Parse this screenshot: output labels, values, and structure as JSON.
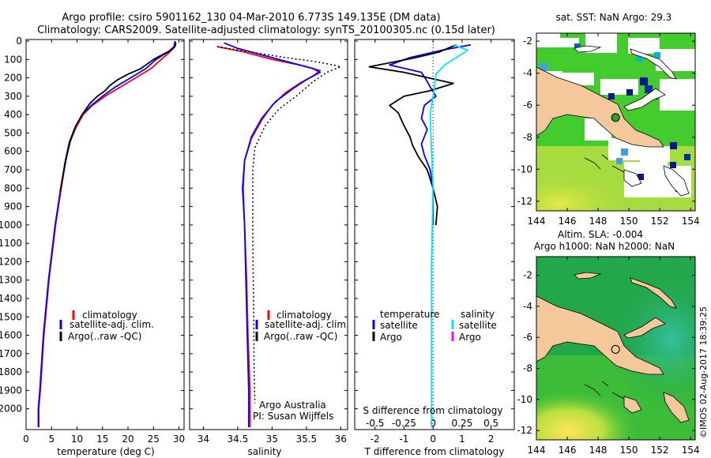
{
  "header": {
    "line1": "Argo profile: csiro 5901162_130 04-Mar-2010 6.773S 149.135E (DM data)",
    "line2": "Climatology: CARS2009. Satellite-adjusted climatology: synTS_20100305.nc (0.15d later)"
  },
  "colors": {
    "clim": "#ff0000",
    "sat": "#0000ff",
    "argo": "#000000",
    "sat_s": "#00e5ff",
    "argo_s": "#ff00ff",
    "land": "#f5c89c"
  },
  "chart_data": [
    {
      "type": "line",
      "name": "temperature",
      "xlabel": "temperature (deg C)",
      "ylabel": "",
      "xlim": [
        0,
        31
      ],
      "ylim": [
        2100,
        0
      ],
      "xticks": [
        "0",
        "5",
        "10",
        "15",
        "20",
        "25",
        "30"
      ],
      "yticks": [
        "0",
        "100",
        "200",
        "300",
        "400",
        "500",
        "600",
        "700",
        "800",
        "900",
        "1000",
        "1100",
        "1200",
        "1300",
        "1400",
        "1500",
        "1600",
        "1700",
        "1800",
        "1900",
        "2000"
      ],
      "legend": [
        "climatology",
        "satellite-adj. clim.",
        "Argo(..raw -QC)"
      ],
      "series": [
        {
          "name": "climatology",
          "color": "clim",
          "points": [
            [
              29.2,
              0
            ],
            [
              29.0,
              30
            ],
            [
              28.2,
              60
            ],
            [
              26.5,
              100
            ],
            [
              24.5,
              150
            ],
            [
              21.5,
              200
            ],
            [
              18.5,
              250
            ],
            [
              15.5,
              300
            ],
            [
              13,
              350
            ],
            [
              11.2,
              400
            ],
            [
              9.8,
              470
            ],
            [
              8.6,
              550
            ],
            [
              7.8,
              650
            ],
            [
              6.9,
              800
            ],
            [
              5.8,
              1000
            ],
            [
              4.5,
              1300
            ],
            [
              3.5,
              1600
            ],
            [
              2.8,
              1900
            ],
            [
              2.5,
              2000
            ],
            [
              2.5,
              2100
            ]
          ]
        },
        {
          "name": "satellite-adj. clim.",
          "color": "sat",
          "points": [
            [
              29.3,
              0
            ],
            [
              29.1,
              30
            ],
            [
              27.8,
              60
            ],
            [
              25.5,
              100
            ],
            [
              23.5,
              150
            ],
            [
              20.5,
              200
            ],
            [
              17.5,
              250
            ],
            [
              15,
              300
            ],
            [
              12.8,
              350
            ],
            [
              11,
              400
            ],
            [
              9.6,
              470
            ],
            [
              8.5,
              550
            ],
            [
              7.7,
              650
            ],
            [
              6.8,
              800
            ],
            [
              5.7,
              1000
            ],
            [
              4.4,
              1300
            ],
            [
              3.4,
              1600
            ],
            [
              2.7,
              1900
            ],
            [
              2.4,
              2000
            ],
            [
              2.4,
              2100
            ]
          ]
        },
        {
          "name": "Argo(..raw -QC)",
          "color": "argo",
          "points": [
            [
              29.4,
              10
            ],
            [
              29.2,
              30
            ],
            [
              28.5,
              50
            ],
            [
              27.0,
              70
            ],
            [
              25.0,
              100
            ],
            [
              23.5,
              130
            ],
            [
              22.5,
              150
            ],
            [
              20,
              180
            ],
            [
              18,
              210
            ],
            [
              16.5,
              240
            ],
            [
              15.5,
              270
            ],
            [
              14,
              300
            ],
            [
              12.5,
              340
            ],
            [
              11,
              400
            ],
            [
              9.8,
              460
            ],
            [
              8.8,
              530
            ],
            [
              8,
              620
            ],
            [
              7.3,
              720
            ],
            [
              6.7,
              820
            ]
          ]
        }
      ]
    },
    {
      "type": "line",
      "name": "salinity",
      "xlabel": "salinity",
      "ylabel": "",
      "xlim": [
        33.8,
        36.1
      ],
      "ylim": [
        2100,
        0
      ],
      "xticks": [
        "34",
        "34.5",
        "35",
        "35.5",
        "36"
      ],
      "legend": [
        "climatology",
        "satellite-adj. clim.",
        "Argo(..raw -QC)"
      ],
      "annotations": [
        "Argo Australia",
        "PI: Susan Wijffels"
      ],
      "series": [
        {
          "name": "climatology",
          "color": "clim",
          "points": [
            [
              34.2,
              30
            ],
            [
              34.6,
              60
            ],
            [
              35.0,
              100
            ],
            [
              35.4,
              130
            ],
            [
              35.7,
              160
            ],
            [
              35.6,
              190
            ],
            [
              35.4,
              230
            ],
            [
              35.2,
              280
            ],
            [
              35.0,
              350
            ],
            [
              34.85,
              430
            ],
            [
              34.7,
              530
            ],
            [
              34.6,
              650
            ],
            [
              34.58,
              800
            ],
            [
              34.6,
              1000
            ],
            [
              34.63,
              1300
            ],
            [
              34.65,
              1600
            ],
            [
              34.68,
              1900
            ],
            [
              34.68,
              2000
            ],
            [
              34.68,
              2100
            ]
          ]
        },
        {
          "name": "satellite-adj. clim.",
          "color": "sat",
          "points": [
            [
              34.3,
              10
            ],
            [
              34.5,
              40
            ],
            [
              34.9,
              80
            ],
            [
              35.3,
              120
            ],
            [
              35.6,
              150
            ],
            [
              35.7,
              170
            ],
            [
              35.5,
              210
            ],
            [
              35.3,
              260
            ],
            [
              35.05,
              330
            ],
            [
              34.85,
              420
            ],
            [
              34.7,
              520
            ],
            [
              34.6,
              650
            ],
            [
              34.57,
              800
            ],
            [
              34.6,
              1000
            ],
            [
              34.62,
              1300
            ],
            [
              34.64,
              1600
            ],
            [
              34.66,
              1900
            ],
            [
              34.66,
              2000
            ],
            [
              34.66,
              2100
            ]
          ]
        },
        {
          "name": "Argo(..raw -QC)",
          "color": "argo",
          "style": "dotted",
          "points": [
            [
              34.2,
              30
            ],
            [
              34.7,
              60
            ],
            [
              35.2,
              90
            ],
            [
              35.6,
              110
            ],
            [
              35.9,
              130
            ],
            [
              36.0,
              140
            ],
            [
              35.8,
              170
            ],
            [
              35.6,
              220
            ],
            [
              35.35,
              300
            ],
            [
              35.1,
              370
            ],
            [
              34.9,
              460
            ],
            [
              34.75,
              580
            ],
            [
              34.72,
              700
            ],
            [
              34.72,
              900
            ],
            [
              34.72,
              1100
            ],
            [
              34.73,
              1400
            ],
            [
              34.74,
              1800
            ],
            [
              34.75,
              1970
            ]
          ]
        }
      ]
    },
    {
      "type": "line",
      "name": "differences",
      "xlabel": "T difference from climatology",
      "xlabel_top": "S difference from climatology",
      "xlim": [
        -2.7,
        2.8
      ],
      "ylim": [
        2100,
        0
      ],
      "xticks_T": [
        "-2",
        "-1",
        "0",
        "1",
        "2"
      ],
      "xticks_S": [
        "-0.5",
        "-0.25",
        "0",
        "0.25",
        "0.5"
      ],
      "legend_T_title": "temperature",
      "legend_S_title": "salinity",
      "legend_T": [
        "satellite",
        "Argo"
      ],
      "legend_S": [
        "satellite",
        "Argo"
      ],
      "series": [
        {
          "name": "T satellite",
          "color": "sat",
          "points": [
            [
              1.3,
              20
            ],
            [
              0.3,
              50
            ],
            [
              -0.8,
              90
            ],
            [
              -1.5,
              130
            ],
            [
              -0.4,
              170
            ],
            [
              -0.2,
              220
            ],
            [
              -0.1,
              250
            ],
            [
              0.1,
              300
            ],
            [
              -0.3,
              350
            ],
            [
              -0.4,
              420
            ],
            [
              -0.2,
              480
            ],
            [
              -0.4,
              560
            ],
            [
              -0.3,
              620
            ],
            [
              -0.1,
              700
            ],
            [
              0,
              800
            ],
            [
              0,
              900
            ],
            [
              0,
              1000
            ]
          ]
        },
        {
          "name": "T Argo",
          "color": "argo",
          "points": [
            [
              0.8,
              20
            ],
            [
              0.2,
              60
            ],
            [
              -0.6,
              90
            ],
            [
              -2.2,
              140
            ],
            [
              -1.0,
              170
            ],
            [
              0.7,
              230
            ],
            [
              -0.1,
              270
            ],
            [
              -1.0,
              300
            ],
            [
              -1.5,
              350
            ],
            [
              -1.2,
              390
            ],
            [
              -1.0,
              460
            ],
            [
              -0.8,
              520
            ],
            [
              -0.7,
              570
            ],
            [
              -0.5,
              630
            ],
            [
              -0.2,
              700
            ],
            [
              0,
              800
            ],
            [
              0.15,
              900
            ],
            [
              0.1,
              1000
            ]
          ]
        },
        {
          "name": "S satellite",
          "color": "sat_s",
          "points": [
            [
              0.7,
              20
            ],
            [
              1.2,
              50
            ],
            [
              0.8,
              90
            ],
            [
              0.4,
              130
            ],
            [
              0.1,
              180
            ],
            [
              0.05,
              250
            ],
            [
              0,
              300
            ],
            [
              -0.1,
              400
            ],
            [
              -0.05,
              600
            ],
            [
              0,
              800
            ],
            [
              -0.05,
              1200
            ],
            [
              -0.05,
              1600
            ],
            [
              -0.05,
              2000
            ],
            [
              -0.05,
              2100
            ]
          ]
        }
      ]
    },
    {
      "type": "heatmap",
      "name": "sst-map",
      "title": "sat. SST: NaN  Argo: 29.3",
      "xticks": [
        "144",
        "146",
        "148",
        "150",
        "152",
        "154"
      ],
      "yticks": [
        "-2",
        "-4",
        "-6",
        "-8",
        "-10",
        "-12"
      ],
      "xlim": [
        144,
        154.3
      ],
      "ylim": [
        -12.6,
        -1.5
      ],
      "argo_position": [
        149.135,
        -6.773
      ]
    },
    {
      "type": "heatmap",
      "name": "sla-map",
      "title": "Altim. SLA: -0.004",
      "subtitle": "Argo h1000: NaN  h2000: NaN",
      "xticks": [
        "144",
        "146",
        "148",
        "150",
        "152",
        "154"
      ],
      "yticks": [
        "-2",
        "-4",
        "-6",
        "-8",
        "-10",
        "-12"
      ],
      "xlim": [
        144,
        154.3
      ],
      "ylim": [
        -12.6,
        -0.8
      ],
      "argo_position": [
        149.135,
        -6.773
      ]
    }
  ],
  "footer": {
    "credit": "©IMOS 02-Aug-2017 18:39:25"
  }
}
